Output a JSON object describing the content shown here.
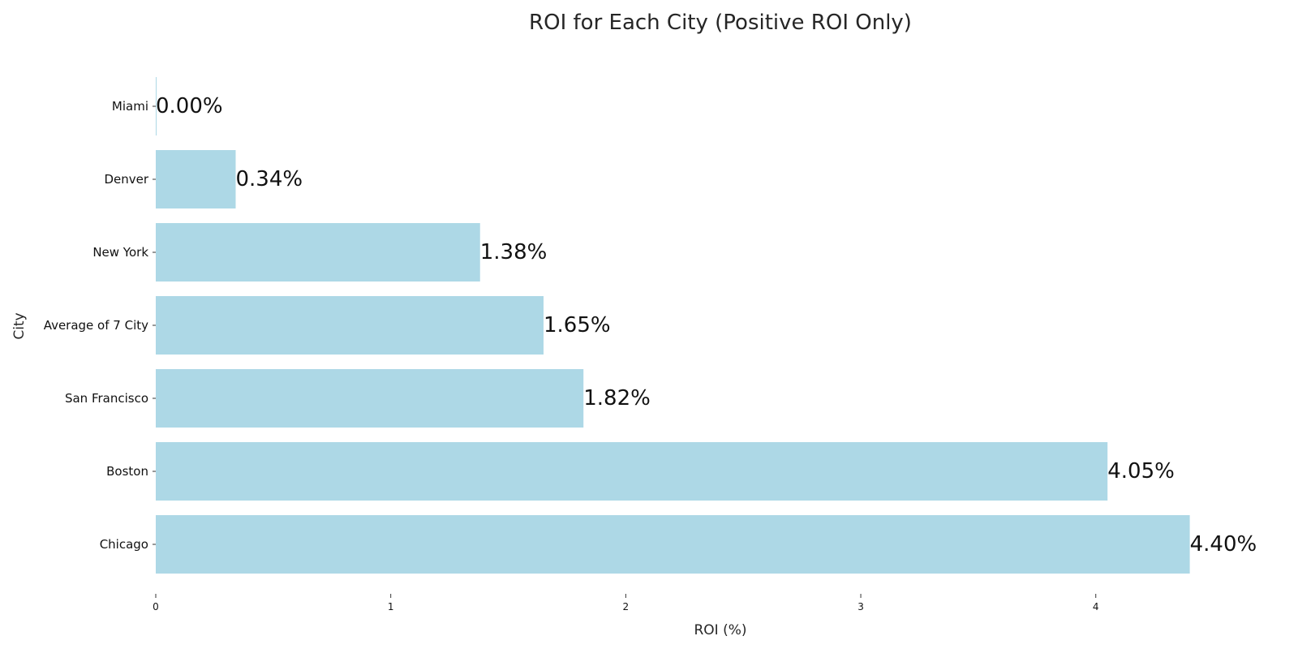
{
  "chart_data": {
    "type": "bar",
    "orientation": "horizontal",
    "title": "ROI for Each City (Positive ROI Only)",
    "xlabel": "ROI (%)",
    "ylabel": "City",
    "categories": [
      "Miami",
      "Denver",
      "New York",
      "Average of 7 City",
      "San Francisco",
      "Boston",
      "Chicago"
    ],
    "values": [
      0.0,
      0.34,
      1.38,
      1.65,
      1.82,
      4.05,
      4.4
    ],
    "value_labels": [
      "0.00%",
      "0.34%",
      "1.38%",
      "1.65%",
      "1.82%",
      "4.05%",
      "4.40%"
    ],
    "xlim": [
      0,
      4.75
    ],
    "x_ticks": [
      0,
      1,
      2,
      3,
      4
    ],
    "x_tick_labels": [
      "0",
      "1",
      "2",
      "3",
      "4"
    ],
    "grid": false,
    "legend": "none",
    "colors": {
      "bar": "#add8e6",
      "text": "#111111"
    }
  }
}
